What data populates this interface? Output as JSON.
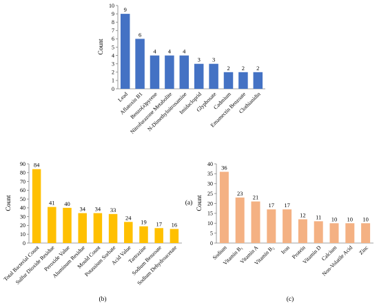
{
  "chart_data": [
    {
      "type": "bar",
      "panel_label": "(a)",
      "ylabel": "Count",
      "ylim": [
        0,
        10
      ],
      "yticks": [
        "0",
        "1",
        "2",
        "3",
        "4",
        "5",
        "6",
        "7",
        "8",
        "9",
        "10"
      ],
      "grid": false,
      "color": "#4472c4",
      "categories": [
        "Lead",
        "Aflatoxin B1",
        "Benzo(a)pyrene",
        "Nitrofurazone Metabolite",
        "N-Dimethylnitrosamine",
        "Imidacloprid",
        "Glyphosate",
        "Cadmium",
        "Emamectin Benzoate",
        "Clothianidin"
      ],
      "values": [
        9,
        6,
        4,
        4,
        4,
        3,
        3,
        2,
        2,
        2
      ],
      "value_labels": [
        "9",
        "6",
        "4",
        "4",
        "4",
        "3",
        "3",
        "2",
        "2",
        "2"
      ]
    },
    {
      "type": "bar",
      "panel_label": "(b)",
      "ylabel": "Count",
      "ylim": [
        0,
        90
      ],
      "yticks": [
        "0",
        "10",
        "20",
        "30",
        "40",
        "50",
        "60",
        "70",
        "80",
        "90"
      ],
      "grid": false,
      "color": "#ffc000",
      "categories": [
        "Total Bacterial Count",
        "Sulfur Dioxide Residue",
        "Peroxide Value",
        "Aluminum Residue",
        "Mould Count",
        "Potassium Sorbate",
        "Acid Value",
        "Tartrazine",
        "Sodium Benzoate",
        "Sodium Dehydroacetate"
      ],
      "values": [
        84,
        41,
        40,
        34,
        34,
        33,
        24,
        19,
        17,
        16
      ],
      "value_labels": [
        "84",
        "41",
        "40",
        "34",
        "34",
        "33",
        "24",
        "19",
        "17",
        "16"
      ]
    },
    {
      "type": "bar",
      "panel_label": "(c)",
      "ylabel": "Count",
      "ylim": [
        0,
        40
      ],
      "yticks": [
        "0",
        "5",
        "10",
        "15",
        "20",
        "25",
        "30",
        "35",
        "40"
      ],
      "grid": false,
      "color": "#f4b183",
      "categories": [
        "Sodium",
        "Vitamin B₁",
        "Vitamin A",
        "Vitamin B₂",
        "Iron",
        "Protein",
        "Vitamin D",
        "Calcium",
        "Non-Volatile Acid",
        "Zinc"
      ],
      "values": [
        36,
        23,
        21,
        17,
        17,
        12,
        11,
        10,
        10,
        10
      ],
      "value_labels": [
        "36",
        "23",
        "21",
        "17",
        "17",
        "12",
        "11",
        "10",
        "10",
        "10"
      ]
    }
  ]
}
